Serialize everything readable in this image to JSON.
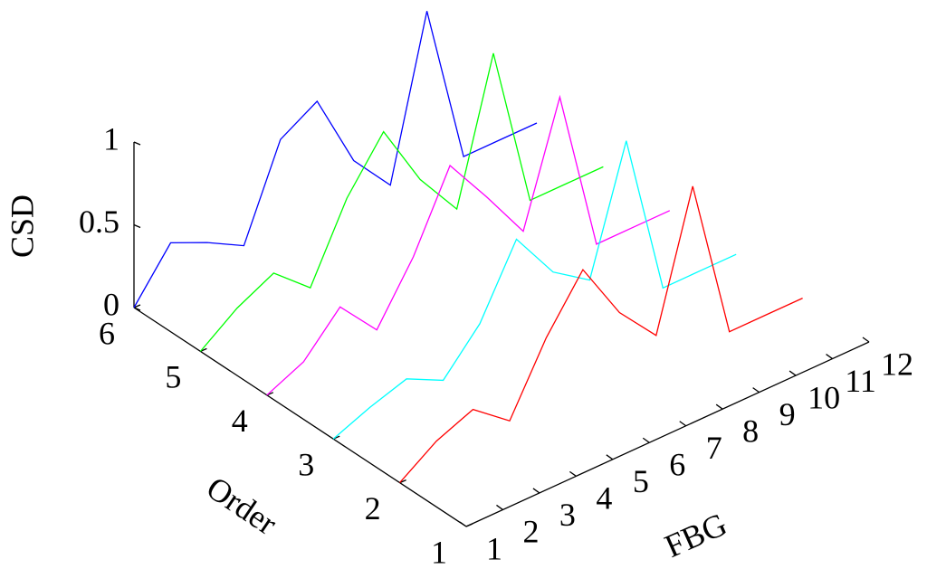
{
  "chart_data": {
    "type": "line3d",
    "xlabel": "FBG",
    "ylabel": "Order",
    "zlabel": "CSD",
    "x": [
      1,
      2,
      3,
      4,
      5,
      6,
      7,
      8,
      9,
      10,
      11,
      12
    ],
    "xlim": [
      1,
      12
    ],
    "xticks": [
      1,
      2,
      3,
      4,
      5,
      6,
      7,
      8,
      9,
      10,
      11,
      12
    ],
    "ylim": [
      1,
      6
    ],
    "yticks": [
      1,
      2,
      3,
      4,
      5,
      6
    ],
    "zlim": [
      0,
      1
    ],
    "zticks": [
      0,
      0.5,
      1
    ],
    "series": [
      {
        "order": 6,
        "color": "#0000ff",
        "values": [
          0,
          0.29,
          0.19,
          0.07,
          0.61,
          0.74,
          0.28,
          0.03,
          0.98,
          0,
          0,
          0
        ]
      },
      {
        "order": 5,
        "color": "#00ff00",
        "values": [
          0,
          0.16,
          0.27,
          0.08,
          0.52,
          0.82,
          0.43,
          0.15,
          0.99,
          0,
          0,
          0
        ]
      },
      {
        "order": 4,
        "color": "#ff00ff",
        "values": [
          0,
          0.1,
          0.33,
          0.09,
          0.43,
          0.88,
          0.59,
          0.28,
          0.99,
          0,
          0,
          0
        ]
      },
      {
        "order": 3,
        "color": "#00ffff",
        "values": [
          0,
          0.09,
          0.16,
          0.05,
          0.29,
          0.7,
          0.4,
          0.25,
          0.99,
          0,
          0,
          0
        ]
      },
      {
        "order": 2,
        "color": "#ff0000",
        "values": [
          0,
          0.15,
          0.24,
          0.07,
          0.47,
          0.78,
          0.42,
          0.18,
          0.98,
          0,
          0,
          0
        ]
      }
    ]
  }
}
